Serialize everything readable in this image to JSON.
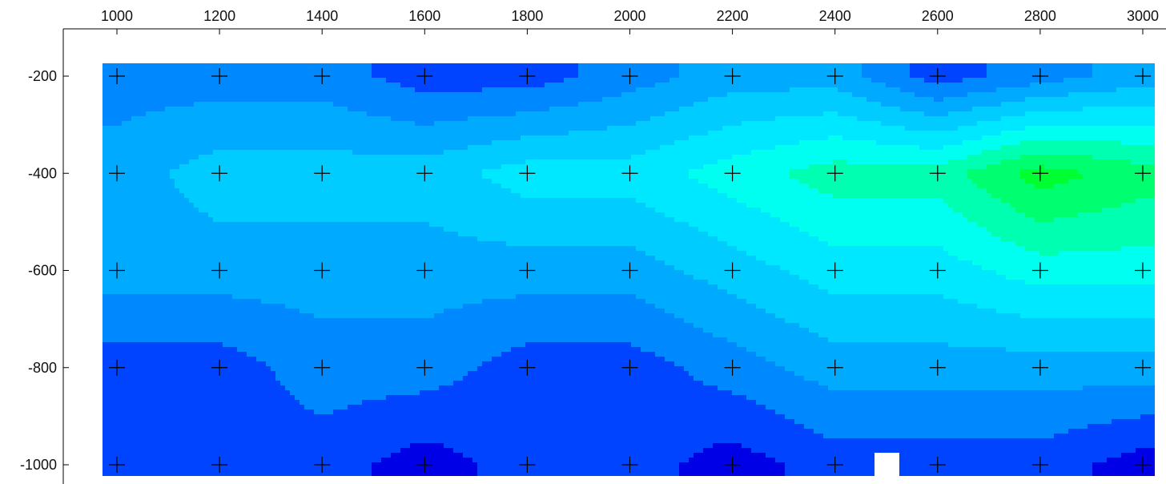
{
  "chart_data": {
    "type": "heatmap",
    "title": "",
    "xlabel": "",
    "ylabel": "",
    "x_ticks": [
      1000,
      1200,
      1400,
      1600,
      1800,
      2000,
      2200,
      2400,
      2600,
      2800,
      3000
    ],
    "y_ticks": [
      -200,
      -400,
      -600,
      -800,
      -1000
    ],
    "x_tick_labels": [
      "1000",
      "1200",
      "1400",
      "1600",
      "1800",
      "2000",
      "2200",
      "2400",
      "2600",
      "2800",
      "3000"
    ],
    "y_tick_labels": [
      "-200",
      "-400",
      "-600",
      "-800",
      "-1000"
    ],
    "xlim": [
      1000,
      3000
    ],
    "ylim": [
      -1000,
      -200
    ],
    "x_axis_position": "top",
    "y_axis_position": "left",
    "grid": false,
    "legend": "none",
    "colormap": [
      "#0000E6",
      "#0044FF",
      "#0088FF",
      "#00AAFF",
      "#00CCFF",
      "#00E8FF",
      "#00FFF0",
      "#00FFB0",
      "#00FF70",
      "#00FF30"
    ],
    "level_count": 10,
    "level_index_grid": [
      [
        2,
        2,
        2,
        1,
        1,
        2,
        3,
        3,
        1,
        2,
        3
      ],
      [
        3,
        4,
        4,
        4,
        5,
        5,
        6,
        7,
        7,
        9,
        8
      ],
      [
        3,
        3,
        3,
        3,
        3,
        3,
        4,
        5,
        5,
        6,
        6
      ],
      [
        1,
        1,
        2,
        2,
        1,
        1,
        2,
        3,
        3,
        3,
        3
      ],
      [
        1,
        1,
        1,
        0,
        1,
        1,
        0,
        1,
        1,
        1,
        0
      ]
    ],
    "sample_markers": "+ at every grid node"
  },
  "colors": {
    "background": "#ffffff",
    "axis": "#000000",
    "text": "#111111",
    "marker": "#000000"
  }
}
